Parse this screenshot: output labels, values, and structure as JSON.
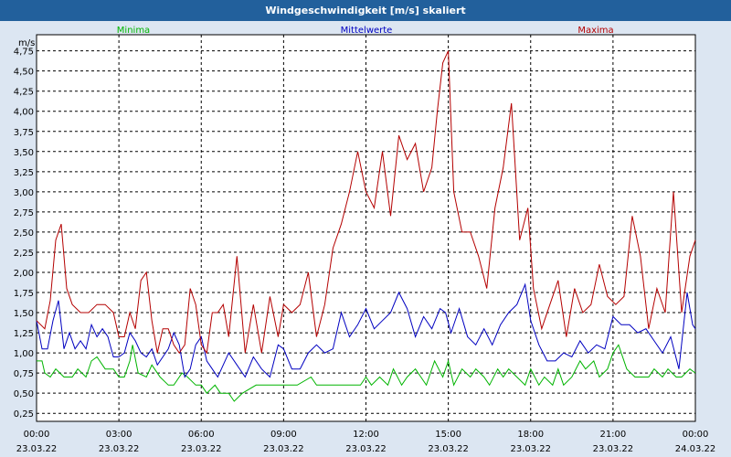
{
  "window": {
    "title": "Windgeschwindigkeit [m/s] skaliert"
  },
  "chart_data": {
    "type": "line",
    "title": "Windgeschwindigkeit [m/s] skaliert",
    "ylabel": "m/s",
    "xlabel": "",
    "ylim": [
      0.15,
      4.95
    ],
    "xlim": [
      0,
      24
    ],
    "grid": true,
    "y_ticks": [
      "0,25",
      "0,50",
      "0,75",
      "1,00",
      "1,25",
      "1,50",
      "1,75",
      "2,00",
      "2,25",
      "2,50",
      "2,75",
      "3,00",
      "3,25",
      "3,50",
      "3,75",
      "4,00",
      "4,25",
      "4,50",
      "4,75"
    ],
    "x_ticks": [
      {
        "time": "00:00",
        "date": "23.03.22"
      },
      {
        "time": "03:00",
        "date": "23.03.22"
      },
      {
        "time": "06:00",
        "date": "23.03.22"
      },
      {
        "time": "09:00",
        "date": "23.03.22"
      },
      {
        "time": "12:00",
        "date": "23.03.22"
      },
      {
        "time": "15:00",
        "date": "23.03.22"
      },
      {
        "time": "18:00",
        "date": "23.03.22"
      },
      {
        "time": "21:00",
        "date": "23.03.22"
      },
      {
        "time": "00:00",
        "date": "24.03.22"
      }
    ],
    "colors": {
      "Minima": "#00b400",
      "Mittelwerte": "#0000c0",
      "Maxima": "#b40000"
    },
    "series": [
      {
        "name": "Minima",
        "x": [
          0,
          0.2,
          0.3,
          0.5,
          0.7,
          1,
          1.3,
          1.5,
          1.8,
          2,
          2.2,
          2.5,
          2.8,
          3,
          3.2,
          3.4,
          3.5,
          3.7,
          4,
          4.2,
          4.5,
          4.8,
          5,
          5.3,
          5.5,
          5.8,
          6,
          6.2,
          6.5,
          6.7,
          7,
          7.2,
          7.5,
          8,
          8.5,
          9,
          9.5,
          10,
          10.2,
          10.5,
          11,
          11.5,
          11.8,
          12,
          12.2,
          12.5,
          12.8,
          13,
          13.3,
          13.5,
          13.8,
          14,
          14.2,
          14.5,
          14.8,
          15,
          15.2,
          15.5,
          15.8,
          16,
          16.3,
          16.5,
          16.8,
          17,
          17.2,
          17.5,
          17.8,
          18,
          18.3,
          18.5,
          18.8,
          19,
          19.2,
          19.5,
          19.8,
          20,
          20.3,
          20.5,
          20.8,
          21,
          21.2,
          21.5,
          21.8,
          22,
          22.3,
          22.5,
          22.8,
          23,
          23.3,
          23.5,
          23.8,
          24
        ],
        "values": [
          0.9,
          0.9,
          0.75,
          0.7,
          0.8,
          0.7,
          0.7,
          0.8,
          0.7,
          0.9,
          0.95,
          0.8,
          0.8,
          0.7,
          0.7,
          0.9,
          1.1,
          0.75,
          0.7,
          0.85,
          0.7,
          0.6,
          0.6,
          0.75,
          0.7,
          0.6,
          0.6,
          0.5,
          0.6,
          0.5,
          0.5,
          0.4,
          0.5,
          0.6,
          0.6,
          0.6,
          0.6,
          0.7,
          0.6,
          0.6,
          0.6,
          0.6,
          0.6,
          0.7,
          0.6,
          0.7,
          0.6,
          0.8,
          0.6,
          0.7,
          0.8,
          0.7,
          0.6,
          0.9,
          0.7,
          0.9,
          0.6,
          0.8,
          0.7,
          0.8,
          0.7,
          0.6,
          0.8,
          0.7,
          0.8,
          0.7,
          0.6,
          0.8,
          0.6,
          0.7,
          0.6,
          0.8,
          0.6,
          0.7,
          0.9,
          0.8,
          0.9,
          0.7,
          0.8,
          1.0,
          1.1,
          0.8,
          0.7,
          0.7,
          0.7,
          0.8,
          0.7,
          0.8,
          0.7,
          0.7,
          0.8,
          0.75
        ]
      },
      {
        "name": "Mittelwerte",
        "x": [
          0,
          0.2,
          0.4,
          0.6,
          0.8,
          1,
          1.2,
          1.4,
          1.6,
          1.8,
          2,
          2.2,
          2.4,
          2.6,
          2.8,
          3,
          3.2,
          3.4,
          3.6,
          3.8,
          4,
          4.2,
          4.4,
          4.6,
          4.8,
          5,
          5.2,
          5.4,
          5.6,
          5.8,
          6,
          6.2,
          6.4,
          6.6,
          6.8,
          7,
          7.3,
          7.6,
          7.9,
          8.2,
          8.5,
          8.8,
          9,
          9.3,
          9.6,
          9.9,
          10.2,
          10.5,
          10.8,
          11.1,
          11.4,
          11.7,
          12,
          12.3,
          12.6,
          12.9,
          13.2,
          13.5,
          13.8,
          14.1,
          14.4,
          14.7,
          14.9,
          15.1,
          15.4,
          15.7,
          16,
          16.3,
          16.6,
          16.9,
          17.2,
          17.5,
          17.8,
          18,
          18.3,
          18.6,
          18.9,
          19.2,
          19.5,
          19.8,
          20.1,
          20.4,
          20.7,
          21,
          21.3,
          21.6,
          21.9,
          22.2,
          22.5,
          22.8,
          23.1,
          23.4,
          23.7,
          23.9,
          24
        ],
        "values": [
          1.4,
          1.05,
          1.05,
          1.4,
          1.65,
          1.05,
          1.25,
          1.05,
          1.15,
          1.05,
          1.35,
          1.2,
          1.3,
          1.2,
          0.95,
          0.95,
          1.0,
          1.25,
          1.15,
          1.0,
          0.95,
          1.05,
          0.85,
          0.95,
          1.05,
          1.25,
          1.1,
          0.7,
          0.8,
          1.1,
          1.2,
          0.9,
          0.8,
          0.7,
          0.85,
          1.0,
          0.85,
          0.7,
          0.95,
          0.8,
          0.7,
          1.1,
          1.05,
          0.8,
          0.8,
          1.0,
          1.1,
          1.0,
          1.05,
          1.5,
          1.2,
          1.35,
          1.55,
          1.3,
          1.4,
          1.5,
          1.75,
          1.55,
          1.2,
          1.45,
          1.3,
          1.55,
          1.5,
          1.25,
          1.55,
          1.2,
          1.1,
          1.3,
          1.1,
          1.35,
          1.5,
          1.6,
          1.85,
          1.4,
          1.1,
          0.9,
          0.9,
          1.0,
          0.95,
          1.15,
          1.0,
          1.1,
          1.05,
          1.45,
          1.35,
          1.35,
          1.25,
          1.3,
          1.15,
          1.0,
          1.2,
          0.8,
          1.75,
          1.35,
          1.3
        ]
      },
      {
        "name": "Maxima",
        "x": [
          0,
          0.3,
          0.5,
          0.7,
          0.9,
          1.1,
          1.3,
          1.6,
          1.9,
          2.2,
          2.5,
          2.8,
          3,
          3.2,
          3.4,
          3.6,
          3.8,
          4,
          4.2,
          4.4,
          4.6,
          4.8,
          5,
          5.2,
          5.4,
          5.6,
          5.8,
          6,
          6.2,
          6.4,
          6.6,
          6.8,
          7,
          7.3,
          7.6,
          7.9,
          8.2,
          8.5,
          8.8,
          9,
          9.3,
          9.6,
          9.9,
          10.2,
          10.5,
          10.8,
          11.1,
          11.4,
          11.7,
          12,
          12.3,
          12.6,
          12.9,
          13.2,
          13.5,
          13.8,
          14.1,
          14.4,
          14.6,
          14.8,
          15,
          15.2,
          15.5,
          15.8,
          16.1,
          16.4,
          16.7,
          17,
          17.3,
          17.6,
          17.9,
          18.1,
          18.4,
          18.7,
          19,
          19.3,
          19.6,
          19.9,
          20.2,
          20.5,
          20.8,
          21.1,
          21.4,
          21.7,
          22,
          22.3,
          22.6,
          22.9,
          23.2,
          23.5,
          23.8,
          24
        ],
        "values": [
          1.4,
          1.3,
          1.65,
          2.4,
          2.6,
          1.8,
          1.6,
          1.5,
          1.5,
          1.6,
          1.6,
          1.5,
          1.2,
          1.2,
          1.5,
          1.3,
          1.9,
          2.0,
          1.4,
          1.0,
          1.3,
          1.3,
          1.1,
          1.0,
          1.1,
          1.8,
          1.6,
          1.1,
          1.0,
          1.5,
          1.5,
          1.6,
          1.2,
          2.2,
          1.0,
          1.6,
          1.0,
          1.7,
          1.2,
          1.6,
          1.5,
          1.6,
          2.0,
          1.2,
          1.6,
          2.3,
          2.6,
          3.0,
          3.5,
          3.0,
          2.8,
          3.5,
          2.7,
          3.7,
          3.4,
          3.6,
          3.0,
          3.3,
          4.0,
          4.6,
          4.75,
          3.0,
          2.5,
          2.5,
          2.2,
          1.8,
          2.8,
          3.3,
          4.1,
          2.4,
          2.8,
          1.8,
          1.3,
          1.6,
          1.9,
          1.2,
          1.8,
          1.5,
          1.6,
          2.1,
          1.7,
          1.6,
          1.7,
          2.7,
          2.2,
          1.3,
          1.8,
          1.5,
          3.0,
          1.5,
          2.2,
          2.4
        ]
      }
    ]
  }
}
